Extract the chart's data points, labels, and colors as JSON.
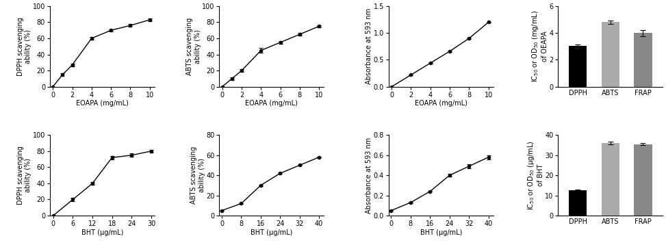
{
  "row1": {
    "dpph": {
      "x": [
        0,
        1,
        2,
        4,
        6,
        8,
        10
      ],
      "y": [
        0,
        15,
        27,
        60,
        70,
        76,
        83
      ],
      "yerr": [
        0,
        1.5,
        1.5,
        1.5,
        1.5,
        1.5,
        1.5
      ],
      "xlabel": "EOAPA (mg/mL)",
      "ylabel": "DPPH scavenging\nability (%)",
      "xlim": [
        -0.3,
        10.5
      ],
      "ylim": [
        0,
        100
      ],
      "xticks": [
        0,
        2,
        4,
        6,
        8,
        10
      ],
      "yticks": [
        0,
        20,
        40,
        60,
        80,
        100
      ]
    },
    "abts": {
      "x": [
        0,
        1,
        2,
        4,
        6,
        8,
        10
      ],
      "y": [
        0,
        10,
        20,
        45,
        55,
        65,
        75
      ],
      "yerr": [
        0,
        1.5,
        1.5,
        3.0,
        1.5,
        1.5,
        1.5
      ],
      "xlabel": "EOAPA (mg/mL)",
      "ylabel": "ABTS scavenging\nability (%)",
      "xlim": [
        -0.3,
        10.5
      ],
      "ylim": [
        0,
        100
      ],
      "xticks": [
        0,
        2,
        4,
        6,
        8,
        10
      ],
      "yticks": [
        0,
        20,
        40,
        60,
        80,
        100
      ]
    },
    "frap": {
      "x": [
        0,
        2,
        4,
        6,
        8,
        10
      ],
      "y": [
        0.0,
        0.22,
        0.44,
        0.66,
        0.9,
        1.2
      ],
      "yerr": [
        0.0,
        0.01,
        0.01,
        0.01,
        0.01,
        0.01
      ],
      "xlabel": "EOAPA (mg/mL)",
      "ylabel": "Absorbance at 593 nm",
      "xlim": [
        -0.3,
        10.5
      ],
      "ylim": [
        0.0,
        1.5
      ],
      "xticks": [
        0,
        2,
        4,
        6,
        8,
        10
      ],
      "yticks": [
        0.0,
        0.5,
        1.0,
        1.5
      ]
    },
    "bar": {
      "categories": [
        "DPPH",
        "ABTS",
        "FRAP"
      ],
      "values": [
        3.05,
        4.8,
        4.0
      ],
      "errors": [
        0.1,
        0.15,
        0.22
      ],
      "colors": [
        "#000000",
        "#aaaaaa",
        "#888888"
      ],
      "ylabel": "IC$_{50}$ or OD$_{50}$ (mg/mL)\nof OEAPA",
      "ylim": [
        0,
        6
      ],
      "yticks": [
        0,
        2,
        4,
        6
      ]
    }
  },
  "row2": {
    "dpph": {
      "x": [
        0,
        6,
        12,
        18,
        24,
        30
      ],
      "y": [
        0,
        20,
        40,
        72,
        75,
        80
      ],
      "yerr": [
        0,
        2,
        2,
        2,
        2,
        2
      ],
      "xlabel": "BHT (μg/mL)",
      "ylabel": "DPPH scavenging\nability (%)",
      "xlim": [
        -1,
        31
      ],
      "ylim": [
        0,
        100
      ],
      "xticks": [
        0,
        6,
        12,
        18,
        24,
        30
      ],
      "yticks": [
        0,
        20,
        40,
        60,
        80,
        100
      ]
    },
    "abts": {
      "x": [
        0,
        8,
        16,
        24,
        32,
        40
      ],
      "y": [
        5,
        12,
        30,
        42,
        50,
        58
      ],
      "yerr": [
        0.5,
        0.5,
        0.5,
        0.5,
        0.5,
        0.5
      ],
      "xlabel": "BHT (μg/mL)",
      "ylabel": "ABTS scavenging\nability (%)",
      "xlim": [
        -1,
        42
      ],
      "ylim": [
        0,
        80
      ],
      "xticks": [
        0,
        8,
        16,
        24,
        32,
        40
      ],
      "yticks": [
        0,
        20,
        40,
        60,
        80
      ]
    },
    "frap": {
      "x": [
        0,
        8,
        16,
        24,
        32,
        40
      ],
      "y": [
        0.05,
        0.13,
        0.24,
        0.4,
        0.49,
        0.58
      ],
      "yerr": [
        0.005,
        0.005,
        0.005,
        0.015,
        0.02,
        0.02
      ],
      "xlabel": "BHT (μg/mL)",
      "ylabel": "Absorbance at 593 nm",
      "xlim": [
        -1,
        42
      ],
      "ylim": [
        0.0,
        0.8
      ],
      "xticks": [
        0,
        8,
        16,
        24,
        32,
        40
      ],
      "yticks": [
        0.0,
        0.2,
        0.4,
        0.6,
        0.8
      ]
    },
    "bar": {
      "categories": [
        "DPPH",
        "ABTS",
        "FRAP"
      ],
      "values": [
        12.5,
        36.0,
        35.5
      ],
      "errors": [
        0.5,
        0.8,
        0.5
      ],
      "colors": [
        "#000000",
        "#aaaaaa",
        "#888888"
      ],
      "ylabel": "IC$_{50}$ or OD$_{50}$ (μg/mL)\nof BHT",
      "ylim": [
        0,
        40
      ],
      "yticks": [
        0,
        10,
        20,
        30,
        40
      ]
    }
  }
}
